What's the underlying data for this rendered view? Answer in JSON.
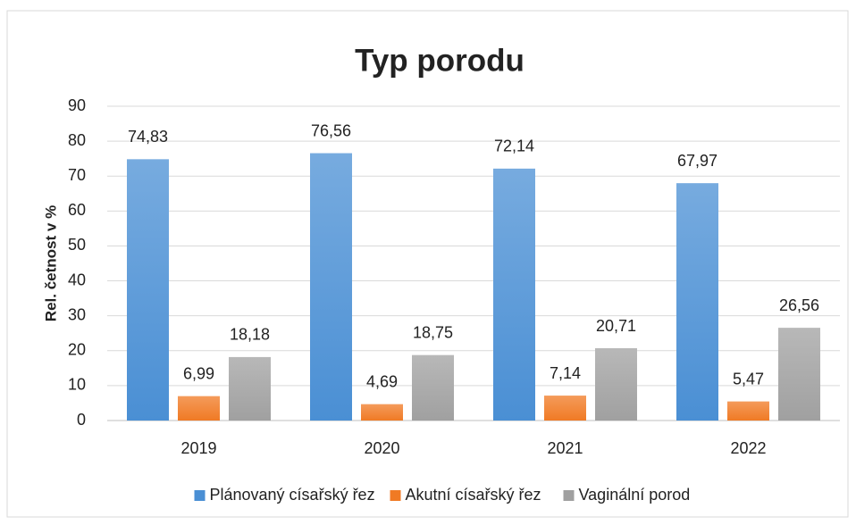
{
  "chart_data": {
    "type": "bar",
    "title": "Typ porodu",
    "y_label": "Rel. četnost v %",
    "categories": [
      "2019",
      "2020",
      "2021",
      "2022"
    ],
    "series": [
      {
        "name": "Plánovaný císařský řez",
        "color": "#4a8fd4",
        "values": [
          74.83,
          76.56,
          72.14,
          67.97
        ],
        "value_labels": [
          "74,83",
          "76,56",
          "72,14",
          "67,97"
        ]
      },
      {
        "name": "Akutní císařský řez",
        "color": "#f07a24",
        "values": [
          6.99,
          4.69,
          7.14,
          5.47
        ],
        "value_labels": [
          "6,99",
          "4,69",
          "7,14",
          "5,47"
        ]
      },
      {
        "name": "Vaginální porod",
        "color": "#a0a0a0",
        "values": [
          18.18,
          18.75,
          20.71,
          26.56
        ],
        "value_labels": [
          "18,18",
          "18,75",
          "20,71",
          "26,56"
        ]
      }
    ],
    "ylim": [
      0,
      90
    ],
    "yticks": [
      0,
      10,
      20,
      30,
      40,
      50,
      60,
      70,
      80,
      90
    ],
    "grid": true,
    "legend": "bottom"
  }
}
